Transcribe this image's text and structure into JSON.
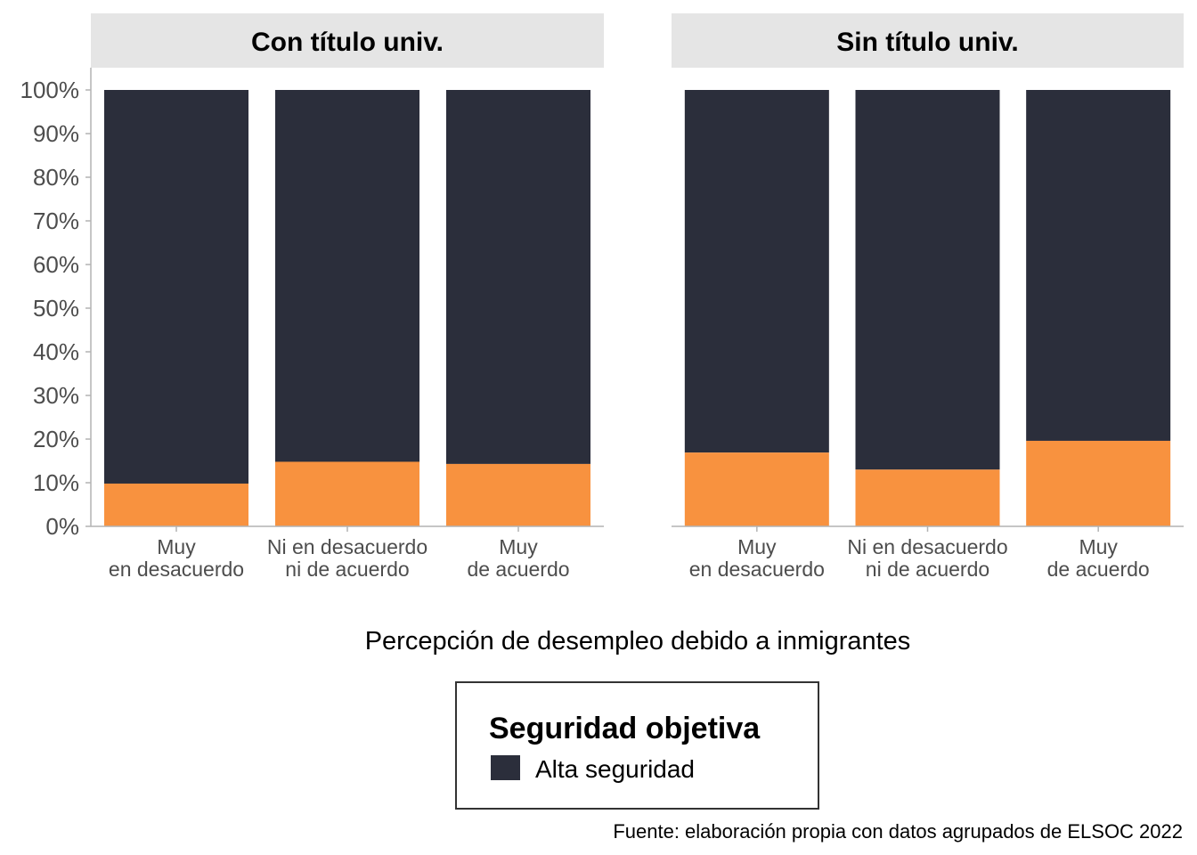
{
  "chart_data": {
    "type": "bar",
    "stacked": true,
    "xlabel": "Percepción de desempleo debido a inmigrantes",
    "ylabel": "",
    "ylim": [
      0,
      100
    ],
    "y_ticks": [
      "0%",
      "10%",
      "20%",
      "30%",
      "40%",
      "50%",
      "60%",
      "70%",
      "80%",
      "90%",
      "100%"
    ],
    "categories": [
      [
        "Muy",
        "en desacuerdo"
      ],
      [
        "Ni en desacuerdo",
        "ni de acuerdo"
      ],
      [
        "Muy",
        "de acuerdo"
      ]
    ],
    "colors": {
      "low": "#f8923f",
      "high": "#2b2e3b"
    },
    "facets": [
      {
        "title": "Con título univ.",
        "low_values": [
          9.8,
          14.8,
          14.3
        ],
        "high_values": [
          90.2,
          85.2,
          85.7
        ]
      },
      {
        "title": "Sin título univ.",
        "low_values": [
          16.9,
          13.0,
          19.6
        ],
        "high_values": [
          83.1,
          87.0,
          80.4
        ]
      }
    ],
    "legend": {
      "title": "Seguridad objetiva",
      "position": "bottom",
      "items": [
        {
          "label": "Alta seguridad",
          "color": "#2b2e3b"
        }
      ]
    },
    "caption": "Fuente: elaboración propia con datos agrupados de ELSOC 2022",
    "grid": false
  }
}
